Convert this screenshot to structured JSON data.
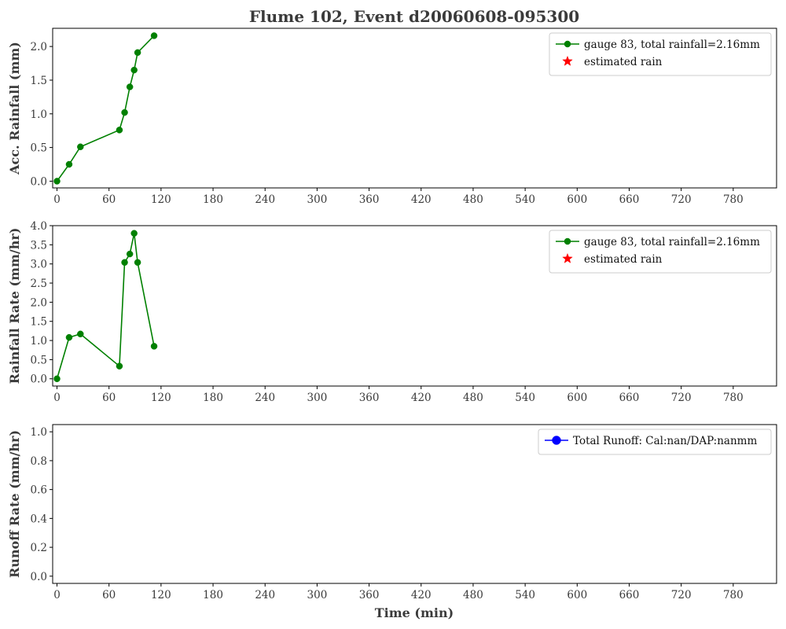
{
  "figure": {
    "title": "Flume 102, Event d20060608-095300",
    "xlabel": "Time (min)"
  },
  "chart_data": [
    {
      "type": "line",
      "ylabel": "Acc. Rainfall (mm)",
      "xlim": [
        -5,
        830
      ],
      "ylim": [
        -0.1,
        2.27
      ],
      "xticks": [
        0,
        60,
        120,
        180,
        240,
        300,
        360,
        420,
        480,
        540,
        600,
        660,
        720,
        780
      ],
      "yticks": [
        0.0,
        0.5,
        1.0,
        1.5,
        2.0
      ],
      "ytick_format": 1,
      "grid": false,
      "legend_position": "top-right",
      "series": [
        {
          "name": "gauge 83, total rainfall=2.16mm",
          "color": "#008000",
          "marker": "circle",
          "x": [
            0,
            14,
            27,
            72,
            78,
            84,
            89,
            93,
            112
          ],
          "y": [
            0.0,
            0.25,
            0.51,
            0.76,
            1.02,
            1.4,
            1.65,
            1.91,
            2.16
          ]
        },
        {
          "name": "estimated rain",
          "color": "#ff0000",
          "marker": "star",
          "x": [],
          "y": []
        }
      ]
    },
    {
      "type": "line",
      "ylabel": "Rainfall Rate (mm/hr)",
      "xlim": [
        -5,
        830
      ],
      "ylim": [
        -0.19,
        4.0
      ],
      "xticks": [
        0,
        60,
        120,
        180,
        240,
        300,
        360,
        420,
        480,
        540,
        600,
        660,
        720,
        780
      ],
      "yticks": [
        0.0,
        0.5,
        1.0,
        1.5,
        2.0,
        2.5,
        3.0,
        3.5,
        4.0
      ],
      "ytick_format": 1,
      "grid": false,
      "legend_position": "top-right",
      "series": [
        {
          "name": "gauge 83, total rainfall=2.16mm",
          "color": "#008000",
          "marker": "circle",
          "x": [
            0,
            14,
            27,
            72,
            78,
            84,
            89,
            93,
            112
          ],
          "y": [
            0.0,
            1.08,
            1.17,
            0.33,
            3.04,
            3.26,
            3.8,
            3.04,
            0.85
          ]
        },
        {
          "name": "estimated rain",
          "color": "#ff0000",
          "marker": "star",
          "x": [],
          "y": []
        }
      ]
    },
    {
      "type": "line",
      "ylabel": "Runoff Rate (mm/hr)",
      "xlim": [
        -5,
        830
      ],
      "ylim": [
        -0.05,
        1.05
      ],
      "xticks": [
        0,
        60,
        120,
        180,
        240,
        300,
        360,
        420,
        480,
        540,
        600,
        660,
        720,
        780
      ],
      "yticks": [
        0.0,
        0.2,
        0.4,
        0.6,
        0.8,
        1.0
      ],
      "ytick_format": 1,
      "grid": false,
      "legend_position": "top-right",
      "series": [
        {
          "name": "Total Runoff: Cal:nan/DAP:nanmm",
          "color": "#0000ff",
          "marker": "circle-large",
          "x": [],
          "y": []
        }
      ]
    }
  ]
}
